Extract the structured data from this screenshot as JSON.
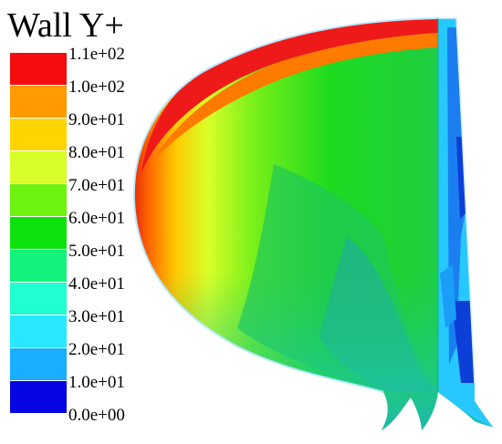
{
  "title": "Wall Y+",
  "legend": {
    "ticks": [
      "1.1e+02",
      "1.0e+02",
      "9.0e+01",
      "8.0e+01",
      "7.0e+01",
      "6.0e+01",
      "5.0e+01",
      "4.0e+01",
      "3.0e+01",
      "2.0e+01",
      "1.0e+01",
      "0.0e+00"
    ],
    "colors": [
      "#f50d0d",
      "#ff9a00",
      "#ffd400",
      "#d8ff2a",
      "#6df30f",
      "#0de20d",
      "#13f27a",
      "#1fffd0",
      "#27e8ff",
      "#1aaeff",
      "#0b63f2",
      "#0606e2"
    ]
  }
}
